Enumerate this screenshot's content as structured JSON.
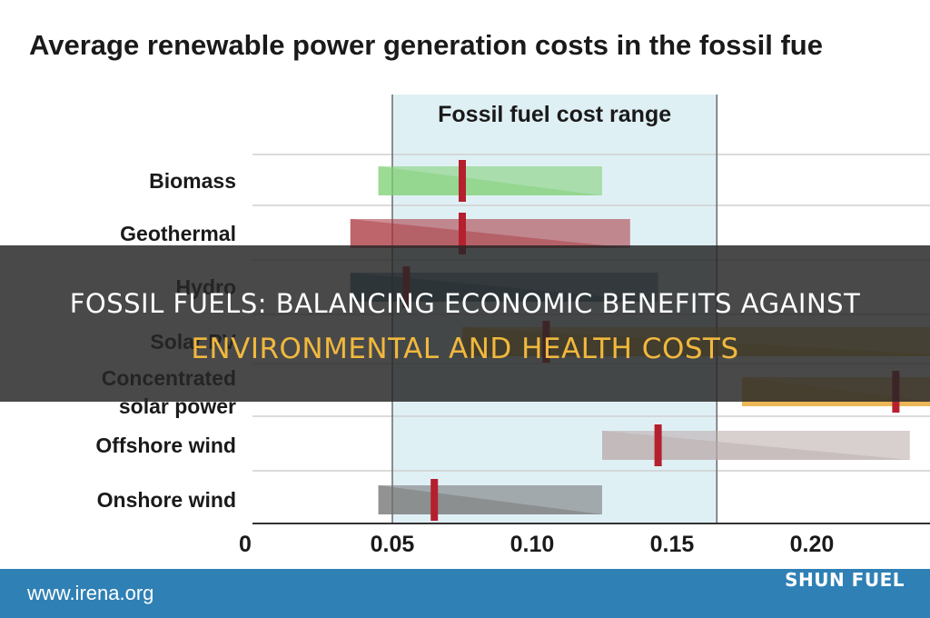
{
  "chart_data": {
    "type": "bar",
    "title": "Average renewable power generation costs in the fossil fue",
    "band_label": "Fossil fuel cost range",
    "band_range": [
      0.05,
      0.166
    ],
    "xlim": [
      0,
      0.24
    ],
    "x_ticks": [
      "0",
      "0.05",
      "0.10",
      "0.15",
      "0.20"
    ],
    "x_tick_values": [
      0,
      0.05,
      0.1,
      0.15,
      0.2
    ],
    "grid": true,
    "categories": [
      "Biomass",
      "Geothermal",
      "Hydro",
      "Solar PV",
      "Concentrated solar power",
      "Offshore wind",
      "Onshore wind"
    ],
    "category_lines": [
      [
        "Biomass"
      ],
      [
        "Geothermal"
      ],
      [
        "Hydro"
      ],
      [
        "Solar PV"
      ],
      [
        "Concentrated",
        "solar power"
      ],
      [
        "Offshore wind"
      ],
      [
        "Onshore wind"
      ]
    ],
    "ranges": [
      {
        "low": 0.045,
        "high": 0.125,
        "average": 0.075,
        "color": "#7ccf70"
      },
      {
        "low": 0.035,
        "high": 0.135,
        "average": 0.075,
        "color": "#a7323a"
      },
      {
        "low": 0.035,
        "high": 0.145,
        "average": 0.055,
        "color": "#1f5775"
      },
      {
        "low": 0.075,
        "high": 0.255,
        "average": 0.105,
        "color": "#d8a020"
      },
      {
        "low": 0.175,
        "high": 0.255,
        "average": 0.23,
        "color": "#e6a020"
      },
      {
        "low": 0.125,
        "high": 0.235,
        "average": 0.145,
        "color": "#b8a8a8"
      },
      {
        "low": 0.045,
        "high": 0.125,
        "average": 0.065,
        "color": "#6f6f6f"
      }
    ]
  },
  "overlay": {
    "line1": "FOSSIL FUELS: BALANCING ECONOMIC BENEFITS AGAINST",
    "line2": "ENVIRONMENTAL AND HEALTH COSTS"
  },
  "footer": {
    "url": "www.irena.org",
    "brand": "SHUN FUEL"
  }
}
